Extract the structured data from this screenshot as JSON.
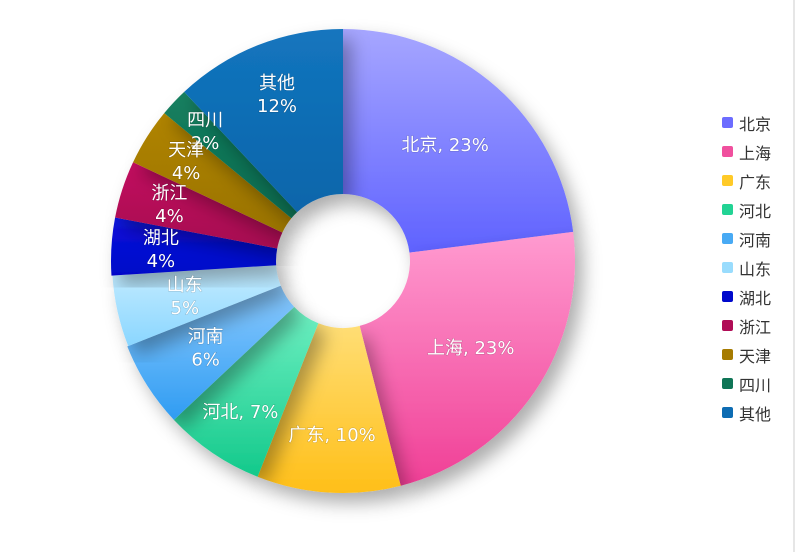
{
  "chart_data": {
    "type": "pie",
    "variant": "donut",
    "title": "",
    "legend_position": "right",
    "slices": [
      {
        "name": "北京",
        "value": 23,
        "label": "北京, 23%",
        "color_top": "#a6a6ff",
        "color_bottom": "#5f62ff",
        "legend_color": "#6c6cff"
      },
      {
        "name": "上海",
        "value": 23,
        "label": "上海, 23%",
        "color_top": "#ff9bd0",
        "color_bottom": "#f03f96",
        "legend_color": "#f0509e"
      },
      {
        "name": "广东",
        "value": 10,
        "label": "广东, 10%",
        "color_top": "#ffde76",
        "color_bottom": "#ffbf18",
        "legend_color": "#ffca28"
      },
      {
        "name": "河北",
        "value": 7,
        "label": "河北, 7%",
        "color_top": "#6ff0c2",
        "color_bottom": "#13c98b",
        "legend_color": "#22d394"
      },
      {
        "name": "河南",
        "value": 6,
        "label": "河南\n6%",
        "color_top": "#8bcaff",
        "color_bottom": "#2f9cf2",
        "legend_color": "#48aaf4"
      },
      {
        "name": "山东",
        "value": 5,
        "label": "山东\n5%",
        "color_top": "#c5ecff",
        "color_bottom": "#8ad6ff",
        "legend_color": "#99dcfd"
      },
      {
        "name": "湖北",
        "value": 4,
        "label": "湖北\n4%",
        "color_top": "#0b14dd",
        "color_bottom": "#0006c8",
        "legend_color": "#0009cc"
      },
      {
        "name": "浙江",
        "value": 4,
        "label": "浙江\n4%",
        "color_top": "#c2105f",
        "color_bottom": "#a60a50",
        "legend_color": "#b00c56"
      },
      {
        "name": "天津",
        "value": 4,
        "label": "天津\n4%",
        "color_top": "#b08400",
        "color_bottom": "#9a7300",
        "legend_color": "#a67b00"
      },
      {
        "name": "四川",
        "value": 2,
        "label": "四川\n2%",
        "color_top": "#148060",
        "color_bottom": "#0a6a4e",
        "legend_color": "#0f7556"
      },
      {
        "name": "其他",
        "value": 12,
        "label": "其他\n12%",
        "color_top": "#1375be",
        "color_bottom": "#0a65aa",
        "legend_color": "#0d6cb3"
      }
    ]
  }
}
